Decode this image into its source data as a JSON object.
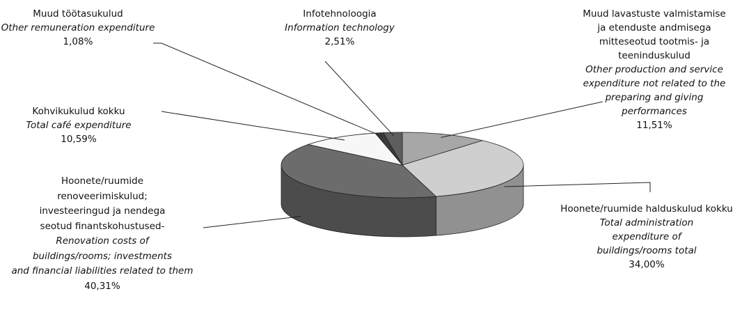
{
  "chart_data": {
    "type": "pie",
    "style": "3d",
    "slices": [
      {
        "label_et": "Muud lavastuste valmistamise ja etenduste andmisega mitteseotud tootmis- ja teeninduskulud",
        "label_en": "Other production and service expenditure not related to the preparing and giving performances",
        "value": 11.51,
        "value_label": "11,51%",
        "color": "#a7a7a7"
      },
      {
        "label_et": "Hoonete/ruumide halduskulud kokku",
        "label_en": "Total administration expenditure of buildings/rooms total",
        "value": 34.0,
        "value_label": "34,00%",
        "color": "#cfcfcf"
      },
      {
        "label_et": "Hoonete/ruumide renoveerimiskulud; investeeringud ja nendega seotud finantskohustused-",
        "label_en": "Renovation costs of buildings/rooms; investments and financial liabilities related to them",
        "value": 40.31,
        "value_label": "40,31%",
        "color": "#6c6c6c"
      },
      {
        "label_et": "Kohvikukulud kokku",
        "label_en": "Total café expenditure",
        "value": 10.59,
        "value_label": "10,59%",
        "color": "#f7f7f7"
      },
      {
        "label_et": "Muud töötasukulud",
        "label_en": "Other remuneration expenditure",
        "value": 1.08,
        "value_label": "1,08%",
        "color": "#3a3a3a"
      },
      {
        "label_et": "Infotehnoloogia",
        "label_en": "Information technology",
        "value": 2.51,
        "value_label": "2,51%",
        "color": "#5e5e5e"
      }
    ]
  },
  "labels": {
    "other_remuneration": {
      "et": "Muud töötasukulud",
      "en": "Other remuneration expenditure",
      "pct": "1,08%"
    },
    "info_tech": {
      "et": "Infotehnoloogia",
      "en": "Information technology",
      "pct": "2,51%"
    },
    "other_production": {
      "et_lines": [
        "Muud lavastuste valmistamise",
        "ja etenduste andmisega",
        "mitteseotud tootmis- ja",
        "teeninduskulud"
      ],
      "en_lines": [
        "Other  production and service",
        "expenditure not related to the",
        "preparing and giving",
        "performances"
      ],
      "pct": "11,51%"
    },
    "cafe": {
      "et": "Kohvikukulud  kokku",
      "en": "Total café expenditure",
      "pct": "10,59%"
    },
    "admin": {
      "et_lines": [
        "Hoonete/ruumide halduskulud kokku"
      ],
      "en_lines": [
        "Total administration",
        "expenditure of",
        "buildings/rooms total"
      ],
      "pct": "34,00%"
    },
    "renovation": {
      "et_lines": [
        "Hoonete/ruumide",
        "renoveerimiskulud;",
        "investeeringud ja nendega",
        "seotud finantskohustused-"
      ],
      "en_lines": [
        "Renovation costs of",
        "buildings/rooms; investments",
        "and financial liabilities related to them"
      ],
      "pct": "40,31%"
    }
  }
}
